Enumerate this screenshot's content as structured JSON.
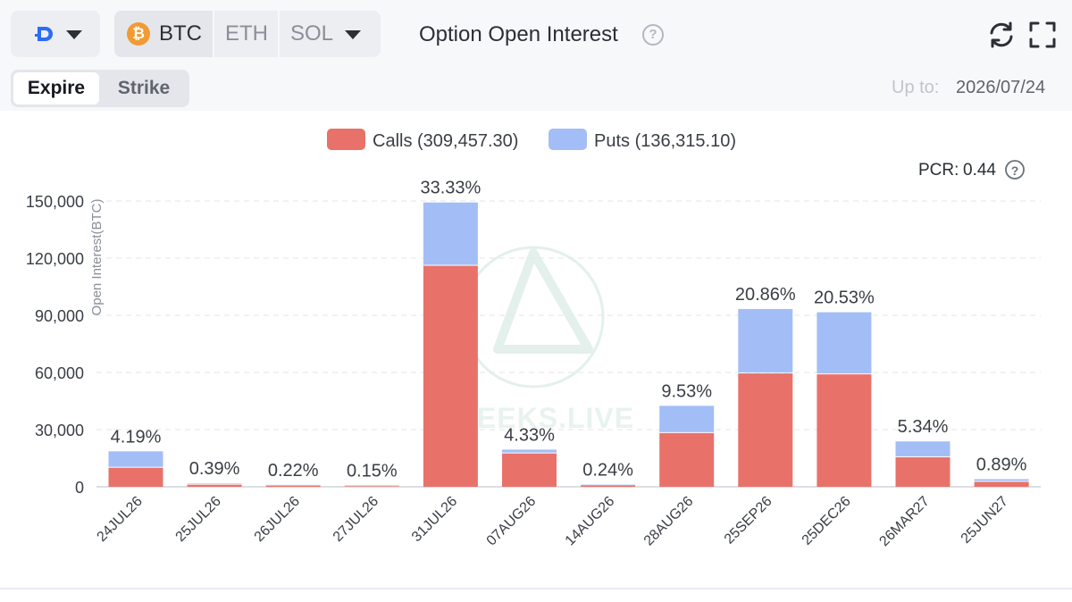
{
  "header": {
    "exchange_icon": "deribit-logo-icon",
    "coins": [
      "BTC",
      "ETH",
      "SOL"
    ],
    "selected_coin": "BTC",
    "title": "Option Open Interest"
  },
  "tabs": [
    "Expire",
    "Strike"
  ],
  "selected_tab": "Expire",
  "up_to": {
    "label": "Up to:",
    "date": "2026/07/24"
  },
  "colors": {
    "calls": "#e8726a",
    "puts": "#a3bef6",
    "accent_btc": "#f29a33",
    "grid": "#e4e6ea"
  },
  "chart_data": {
    "type": "bar",
    "stacked": true,
    "ylabel": "Open Interest(BTC)",
    "ylim": [
      0,
      150000
    ],
    "yticks": [
      0,
      30000,
      60000,
      90000,
      120000,
      150000
    ],
    "ytick_labels": [
      "0",
      "30,000",
      "60,000",
      "90,000",
      "120,000",
      "150,000"
    ],
    "legend_position": "top-center",
    "grid": true,
    "pcr": {
      "label": "PCR:",
      "value": "0.44"
    },
    "categories": [
      "24JUL26",
      "25JUL26",
      "26JUL26",
      "27JUL26",
      "31JUL26",
      "07AUG26",
      "14AUG26",
      "28AUG26",
      "25SEP26",
      "25DEC26",
      "26MAR27",
      "25JUN27"
    ],
    "series": [
      {
        "name": "Calls",
        "legend": "Calls (309,457.30)",
        "color": "#e8726a",
        "values": [
          10000,
          1100,
          600,
          300,
          116000,
          17500,
          800,
          28200,
          59500,
          59000,
          15500,
          2600
        ]
      },
      {
        "name": "Puts",
        "legend": "Puts (136,315.10)",
        "color": "#a3bef6",
        "values": [
          8600,
          700,
          400,
          400,
          33200,
          2000,
          300,
          14300,
          33800,
          32600,
          8300,
          1400
        ]
      }
    ],
    "bar_labels": [
      "4.19%",
      "0.39%",
      "0.22%",
      "0.15%",
      "33.33%",
      "4.33%",
      "0.24%",
      "9.53%",
      "20.86%",
      "20.53%",
      "5.34%",
      "0.89%"
    ],
    "watermark": "GREEKS.LIVE"
  }
}
